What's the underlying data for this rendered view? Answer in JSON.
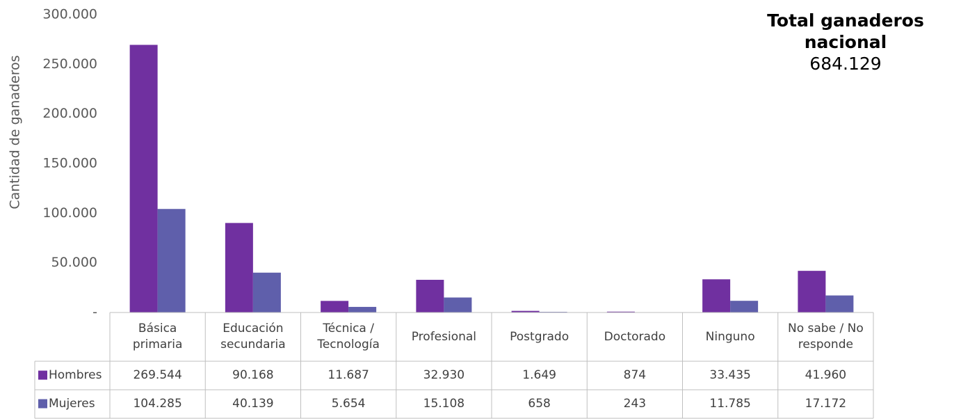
{
  "chart_data": {
    "type": "bar",
    "y_axis_label": "Cantidad de ganaderos",
    "annotation": {
      "title": "Total ganaderos nacional",
      "text": "684.129"
    },
    "categories": [
      "Básica primaria",
      "Educación secundaria",
      "Técnica / Tecnología",
      "Profesional",
      "Postgrado",
      "Doctorado",
      "Ninguno",
      "No sabe / No responde"
    ],
    "series": [
      {
        "name": "Hombres",
        "color": "#7030a0",
        "values": [
          269544,
          90168,
          11687,
          32930,
          1649,
          874,
          33435,
          41960
        ],
        "value_labels": [
          "269.544",
          "90.168",
          "11.687",
          "32.930",
          "1.649",
          "874",
          "33.435",
          "41.960"
        ]
      },
      {
        "name": "Mujeres",
        "color": "#5f5fab",
        "values": [
          104285,
          40139,
          5654,
          15108,
          658,
          243,
          11785,
          17172
        ],
        "value_labels": [
          "104.285",
          "40.139",
          "5.654",
          "15.108",
          "658",
          "243",
          "11.785",
          "17.172"
        ]
      }
    ],
    "ylim": [
      0,
      300000
    ],
    "yticks": [
      {
        "value": 0,
        "label": "-"
      },
      {
        "value": 50000,
        "label": "50.000"
      },
      {
        "value": 100000,
        "label": "100.000"
      },
      {
        "value": 150000,
        "label": "150.000"
      },
      {
        "value": 200000,
        "label": "200.000"
      },
      {
        "value": 250000,
        "label": "250.000"
      },
      {
        "value": 300000,
        "label": "300.000"
      }
    ],
    "grid": false
  }
}
